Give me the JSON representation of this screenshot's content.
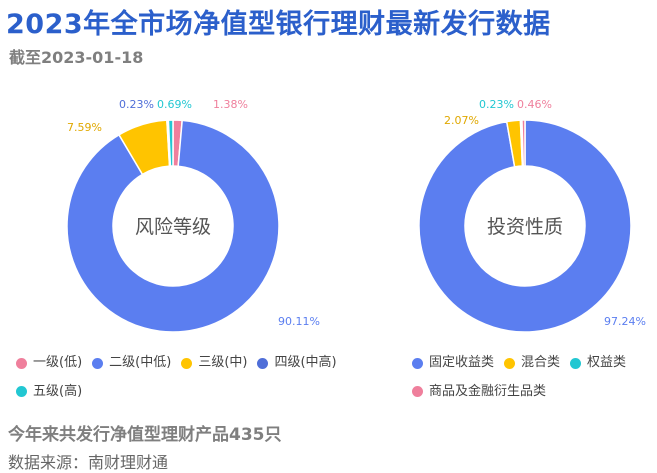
{
  "header": {
    "title": "2023年全市场净值型银行理财最新发行数据",
    "subtitle": "截至2023-01-18"
  },
  "colors": {
    "title": "#2b5fcb",
    "pink": "#ef7f9c",
    "blue": "#5b7ef0",
    "yellow": "#ffc400",
    "royal": "#4f6ed8",
    "cyan": "#22c7d2"
  },
  "chart_data": [
    {
      "type": "pie",
      "center_label": "风险等级",
      "slices": [
        {
          "name": "一级(低)",
          "value": 1.38,
          "label": "1.38%",
          "color": "#ef7f9c"
        },
        {
          "name": "二级(中低)",
          "value": 90.11,
          "label": "90.11%",
          "color": "#5b7ef0"
        },
        {
          "name": "三级(中)",
          "value": 7.59,
          "label": "7.59%",
          "color": "#ffc400"
        },
        {
          "name": "四级(中高)",
          "value": 0.23,
          "label": "0.23%",
          "color": "#4f6ed8"
        },
        {
          "name": "五级(高)",
          "value": 0.69,
          "label": "0.69%",
          "color": "#22c7d2"
        }
      ]
    },
    {
      "type": "pie",
      "center_label": "投资性质",
      "slices": [
        {
          "name": "固定收益类",
          "value": 97.24,
          "label": "97.24%",
          "color": "#5b7ef0"
        },
        {
          "name": "混合类",
          "value": 2.07,
          "label": "2.07%",
          "color": "#ffc400"
        },
        {
          "name": "权益类",
          "value": 0.23,
          "label": "0.23%",
          "color": "#22c7d2"
        },
        {
          "name": "商品及金融衍生品类",
          "value": 0.46,
          "label": "0.46%",
          "color": "#ef7f9c"
        }
      ]
    }
  ],
  "legend_left": [
    {
      "label": "一级(低)",
      "color": "#ef7f9c"
    },
    {
      "label": "二级(中低)",
      "color": "#5b7ef0"
    },
    {
      "label": "三级(中)",
      "color": "#ffc400"
    },
    {
      "label": "四级(中高)",
      "color": "#4f6ed8"
    },
    {
      "label": "五级(高)",
      "color": "#22c7d2"
    }
  ],
  "legend_right": [
    {
      "label": "固定收益类",
      "color": "#5b7ef0"
    },
    {
      "label": "混合类",
      "color": "#ffc400"
    },
    {
      "label": "权益类",
      "color": "#22c7d2"
    },
    {
      "label": "商品及金融衍生品类",
      "color": "#ef7f9c"
    }
  ],
  "footer": {
    "note": "今年来共发行净值型理财产品435只",
    "source": "数据来源：南财理财通"
  }
}
